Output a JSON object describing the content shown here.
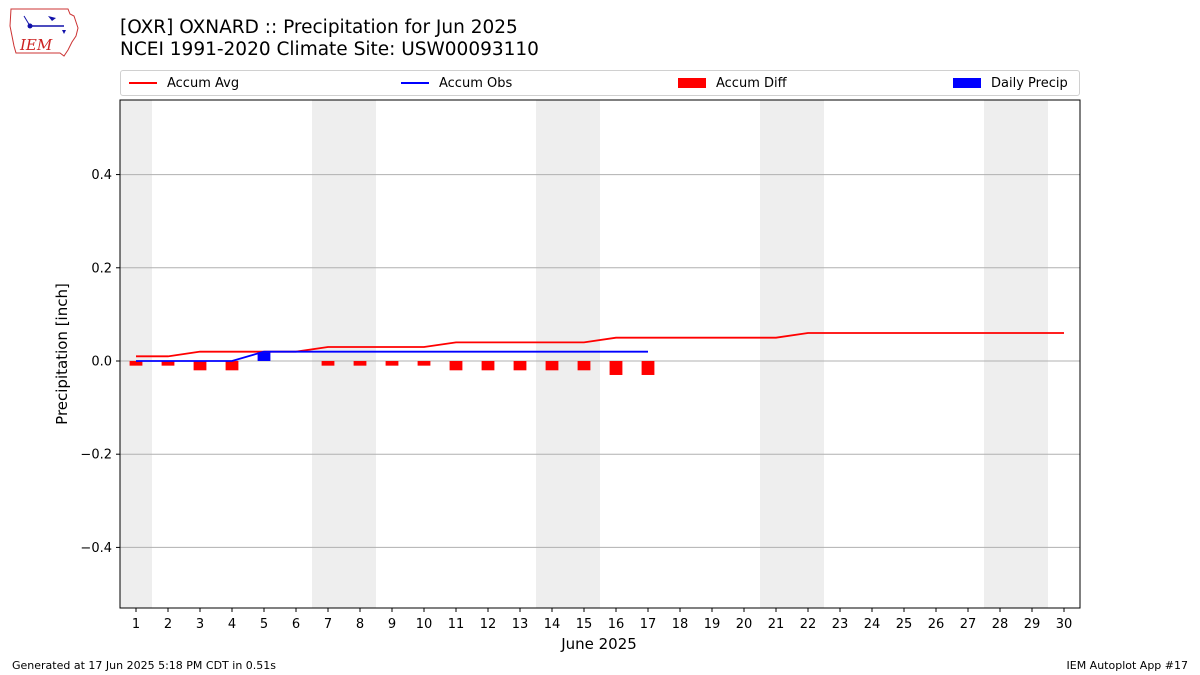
{
  "header": {
    "title_line1": "[OXR] OXNARD :: Precipitation for Jun 2025",
    "title_line2": "NCEI 1991-2020 Climate Site: USW00093110"
  },
  "logo": {
    "text": "IEM",
    "icon": "iem-iowa-logo-icon"
  },
  "footer": {
    "left": "Generated at 17 Jun 2025 5:18 PM CDT in 0.51s",
    "right": "IEM Autoplot App #17"
  },
  "colors": {
    "avg": "#ff0000",
    "obs": "#0000ff",
    "diff": "#ff0000",
    "daily": "#0000ff",
    "weekend": "#eeeeee",
    "grid": "#b0b0b0"
  },
  "chart_data": {
    "type": "bar",
    "xlabel": "June 2025",
    "ylabel": "Precipitation [inch]",
    "ylim": [
      -0.53,
      0.56
    ],
    "xlim": [
      0.5,
      30.5
    ],
    "yticks": [
      -0.4,
      -0.2,
      0.0,
      0.2,
      0.4
    ],
    "ytick_labels": [
      "−0.4",
      "−0.2",
      "0.0",
      "0.2",
      "0.4"
    ],
    "days": [
      1,
      2,
      3,
      4,
      5,
      6,
      7,
      8,
      9,
      10,
      11,
      12,
      13,
      14,
      15,
      16,
      17,
      18,
      19,
      20,
      21,
      22,
      23,
      24,
      25,
      26,
      27,
      28,
      29,
      30
    ],
    "weekends": [
      [
        0.5,
        1.5
      ],
      [
        6.5,
        8.5
      ],
      [
        13.5,
        15.5
      ],
      [
        20.5,
        22.5
      ],
      [
        27.5,
        29.5
      ]
    ],
    "grid": "y",
    "legend_position": "top",
    "legend": [
      "Accum Avg",
      "Accum Obs",
      "Accum Diff",
      "Daily Precip"
    ],
    "series": [
      {
        "name": "Accum Avg",
        "kind": "line",
        "x": [
          1,
          2,
          3,
          4,
          5,
          6,
          7,
          8,
          9,
          10,
          11,
          12,
          13,
          14,
          15,
          16,
          17,
          18,
          19,
          20,
          21,
          22,
          23,
          24,
          25,
          26,
          27,
          28,
          29,
          30
        ],
        "values": [
          0.01,
          0.01,
          0.02,
          0.02,
          0.02,
          0.02,
          0.03,
          0.03,
          0.03,
          0.03,
          0.04,
          0.04,
          0.04,
          0.04,
          0.04,
          0.05,
          0.05,
          0.05,
          0.05,
          0.05,
          0.05,
          0.06,
          0.06,
          0.06,
          0.06,
          0.06,
          0.06,
          0.06,
          0.06,
          0.06
        ]
      },
      {
        "name": "Accum Obs",
        "kind": "line",
        "x": [
          1,
          2,
          3,
          4,
          5,
          6,
          7,
          8,
          9,
          10,
          11,
          12,
          13,
          14,
          15,
          16,
          17
        ],
        "values": [
          0,
          0,
          0,
          0,
          0.02,
          0.02,
          0.02,
          0.02,
          0.02,
          0.02,
          0.02,
          0.02,
          0.02,
          0.02,
          0.02,
          0.02,
          0.02
        ]
      },
      {
        "name": "Accum Diff",
        "kind": "bar",
        "x": [
          1,
          2,
          3,
          4,
          5,
          6,
          7,
          8,
          9,
          10,
          11,
          12,
          13,
          14,
          15,
          16,
          17
        ],
        "values": [
          -0.01,
          -0.01,
          -0.02,
          -0.02,
          0,
          0,
          -0.01,
          -0.01,
          -0.01,
          -0.01,
          -0.02,
          -0.02,
          -0.02,
          -0.02,
          -0.02,
          -0.03,
          -0.03
        ]
      },
      {
        "name": "Daily Precip",
        "kind": "bar",
        "x": [
          5
        ],
        "values": [
          0.02
        ]
      }
    ]
  }
}
